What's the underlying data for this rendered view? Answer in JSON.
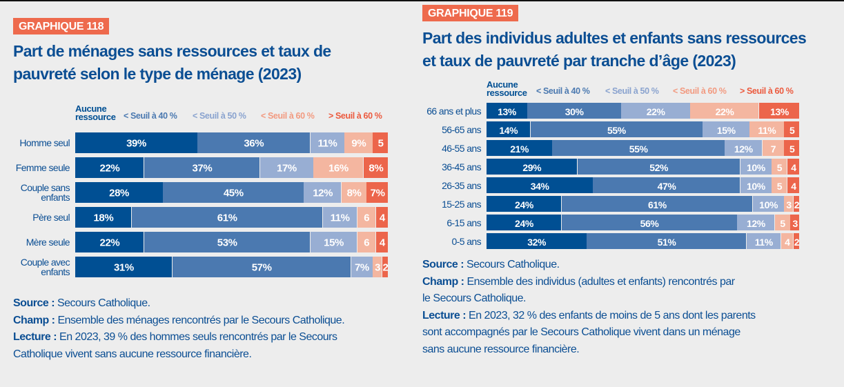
{
  "colors": {
    "aucune": "#004f93",
    "seuil40": "#4b79b0",
    "seuil50": "#98aed3",
    "seuil60lt": "#f4b6a0",
    "seuil60gt": "#ec654b",
    "title": "#0b4e93",
    "badge": "#ee6a4d",
    "background": "#ededed"
  },
  "legend": {
    "aucune": "Aucune\nressource",
    "aucune_line1": "Aucune",
    "aucune_line2": "ressource",
    "seuil40": "< Seuil à 40 %",
    "seuil50": "< Seuil à 50 %",
    "seuil60lt": "< Seuil à 60 %",
    "seuil60gt": "> Seuil à 60 %"
  },
  "chart_data": [
    {
      "type": "bar",
      "orientation": "horizontal",
      "stacked": true,
      "normalized": "percent",
      "badge": "GRAPHIQUE 118",
      "title": "Part de ménages sans ressources et taux de pauvreté selon le type de ménage (2023)",
      "title_line1": "Part de ménages sans ressources et taux de",
      "title_line2": "pauvreté selon le type de ménage (2023)",
      "legend_position": "top",
      "categories": [
        "Homme seul",
        "Femme seule",
        "Couple sans enfants",
        "Père seul",
        "Mère seule",
        "Couple avec enfants"
      ],
      "category_lines": [
        [
          "Homme seul"
        ],
        [
          "Femme seule"
        ],
        [
          "Couple sans",
          "enfants"
        ],
        [
          "Père seul"
        ],
        [
          "Mère seule"
        ],
        [
          "Couple avec",
          "enfants"
        ]
      ],
      "series": [
        {
          "name": "Aucune ressource",
          "key": "aucune",
          "values": [
            39,
            22,
            28,
            18,
            22,
            31
          ],
          "labels": [
            "39%",
            "22%",
            "28%",
            "18%",
            "22%",
            "31%"
          ]
        },
        {
          "name": "< Seuil à 40 %",
          "key": "seuil40",
          "values": [
            36,
            37,
            45,
            61,
            53,
            57
          ],
          "labels": [
            "36%",
            "37%",
            "45%",
            "61%",
            "53%",
            "57%"
          ]
        },
        {
          "name": "< Seuil à 50 %",
          "key": "seuil50",
          "values": [
            11,
            17,
            12,
            11,
            15,
            7
          ],
          "labels": [
            "11%",
            "17%",
            "12%",
            "11%",
            "15%",
            "7%"
          ]
        },
        {
          "name": "< Seuil à 60 %",
          "key": "seuil60lt",
          "values": [
            9,
            16,
            8,
            6,
            6,
            3
          ],
          "labels": [
            "9%",
            "16%",
            "8%",
            "6",
            "6",
            "3"
          ]
        },
        {
          "name": "> Seuil à 60 %",
          "key": "seuil60gt",
          "values": [
            5,
            8,
            7,
            4,
            4,
            2
          ],
          "labels": [
            "5",
            "8%",
            "7%",
            "4",
            "4",
            "2"
          ]
        }
      ],
      "notes": {
        "source_label": "Source :",
        "source_text": " Secours Catholique.",
        "champ_label": "Champ :",
        "champ_text": " Ensemble des ménages rencontrés par le Secours Catholique.",
        "lecture_label": "Lecture :",
        "lecture_text_line1": " En 2023, 39 % des hommes seuls rencontrés par le Secours",
        "lecture_text_line2": "Catholique vivent sans aucune ressource financière."
      }
    },
    {
      "type": "bar",
      "orientation": "horizontal",
      "stacked": true,
      "normalized": "percent",
      "badge": "GRAPHIQUE 119",
      "title": "Part des individus adultes et enfants sans ressources et taux de pauvreté par tranche d’âge (2023)",
      "title_line1": "Part des individus adultes et enfants sans ressources",
      "title_line2": "et taux de pauvreté par tranche d’âge (2023)",
      "legend_position": "top",
      "categories": [
        "66 ans et plus",
        "56-65 ans",
        "46-55 ans",
        "36-45 ans",
        "26-35 ans",
        "15-25 ans",
        "6-15 ans",
        "0-5 ans"
      ],
      "category_lines": [
        [
          "66 ans et plus"
        ],
        [
          "56-65 ans"
        ],
        [
          "46-55 ans"
        ],
        [
          "36-45 ans"
        ],
        [
          "26-35 ans"
        ],
        [
          "15-25 ans"
        ],
        [
          "6-15 ans"
        ],
        [
          "0-5 ans"
        ]
      ],
      "series": [
        {
          "name": "Aucune ressource",
          "key": "aucune",
          "values": [
            13,
            14,
            21,
            29,
            34,
            24,
            24,
            32
          ],
          "labels": [
            "13%",
            "14%",
            "21%",
            "29%",
            "34%",
            "24%",
            "24%",
            "32%"
          ]
        },
        {
          "name": "< Seuil à 40 %",
          "key": "seuil40",
          "values": [
            30,
            55,
            55,
            52,
            47,
            61,
            56,
            51
          ],
          "labels": [
            "30%",
            "55%",
            "55%",
            "52%",
            "47%",
            "61%",
            "56%",
            "51%"
          ]
        },
        {
          "name": "< Seuil à 50 %",
          "key": "seuil50",
          "values": [
            22,
            15,
            12,
            10,
            10,
            10,
            12,
            11
          ],
          "labels": [
            "22%",
            "15%",
            "12%",
            "10%",
            "10%",
            "10%",
            "12%",
            "11%"
          ]
        },
        {
          "name": "< Seuil à 60 %",
          "key": "seuil60lt",
          "values": [
            22,
            11,
            7,
            5,
            5,
            3,
            5,
            4
          ],
          "labels": [
            "22%",
            "11%",
            "7",
            "5",
            "5",
            "3",
            "5",
            "4"
          ]
        },
        {
          "name": "> Seuil à 60 %",
          "key": "seuil60gt",
          "values": [
            13,
            5,
            5,
            4,
            4,
            2,
            3,
            2
          ],
          "labels": [
            "13%",
            "5",
            "5",
            "4",
            "4",
            "2",
            "3",
            "2"
          ]
        }
      ],
      "notes": {
        "source_label": "Source :",
        "source_text": " Secours Catholique.",
        "champ_label": "Champ :",
        "champ_text_line1": " Ensemble des individus (adultes et enfants) rencontrés par",
        "champ_text_line2": "le Secours Catholique.",
        "lecture_label": "Lecture :",
        "lecture_text_line1": " En 2023, 32 % des enfants de moins de 5 ans dont les parents",
        "lecture_text_line2": "sont accompagnés par le Secours Catholique vivent dans un ménage",
        "lecture_text_line3": "sans aucune ressource financière."
      }
    }
  ]
}
